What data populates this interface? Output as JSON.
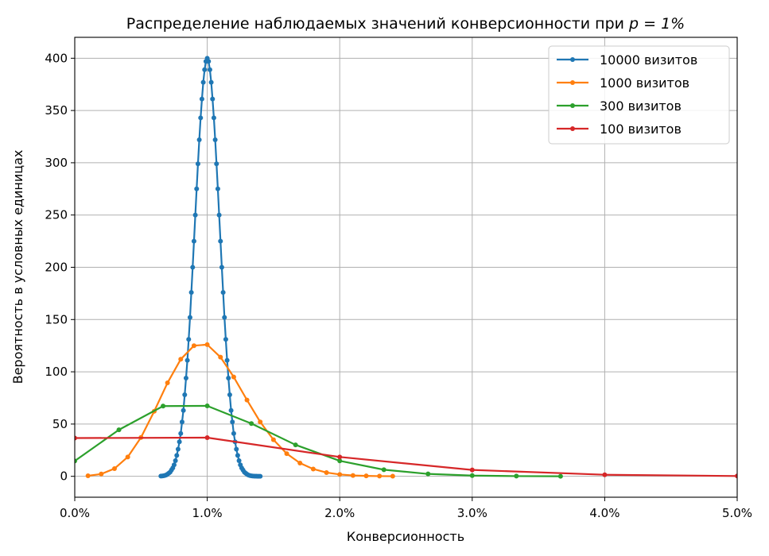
{
  "chart_data": {
    "type": "line",
    "title": "Распределение наблюдаемых значений конверсионности при ",
    "title_math": "p = 1%",
    "xlabel": "Конверсионность",
    "ylabel": "Вероятность в условных единицах",
    "xlim": [
      0.0,
      5.0
    ],
    "ylim": [
      -20,
      420
    ],
    "x_ticks": [
      0,
      1,
      2,
      3,
      4,
      5
    ],
    "x_tick_labels": [
      "0.0%",
      "1.0%",
      "2.0%",
      "3.0%",
      "4.0%",
      "5.0%"
    ],
    "y_ticks": [
      0,
      50,
      100,
      150,
      200,
      250,
      300,
      350,
      400
    ],
    "y_tick_labels": [
      "0",
      "50",
      "100",
      "150",
      "200",
      "250",
      "300",
      "350",
      "400"
    ],
    "grid": true,
    "legend_position": "top-right",
    "series": [
      {
        "name": "10000 визитов",
        "color": "#1f77b4",
        "x": [
          0.65,
          0.66,
          0.67,
          0.68,
          0.69,
          0.7,
          0.71,
          0.72,
          0.73,
          0.74,
          0.75,
          0.76,
          0.77,
          0.78,
          0.79,
          0.8,
          0.81,
          0.82,
          0.83,
          0.84,
          0.85,
          0.86,
          0.87,
          0.88,
          0.89,
          0.9,
          0.91,
          0.92,
          0.93,
          0.94,
          0.95,
          0.96,
          0.97,
          0.98,
          0.99,
          1.0,
          1.01,
          1.02,
          1.03,
          1.04,
          1.05,
          1.06,
          1.07,
          1.08,
          1.09,
          1.1,
          1.11,
          1.12,
          1.13,
          1.14,
          1.15,
          1.16,
          1.17,
          1.18,
          1.19,
          1.2,
          1.21,
          1.22,
          1.23,
          1.24,
          1.25,
          1.26,
          1.27,
          1.28,
          1.29,
          1.3,
          1.31,
          1.32,
          1.33,
          1.34,
          1.35,
          1.36,
          1.37,
          1.38,
          1.39,
          1.4
        ],
        "y": [
          0.2,
          0.3,
          0.5,
          0.8,
          1.3,
          2,
          3,
          4,
          6,
          8,
          11,
          15,
          20,
          26,
          33,
          41,
          52,
          63,
          78,
          94,
          111,
          131,
          152,
          176,
          200,
          225,
          250,
          275,
          299,
          322,
          343,
          361,
          377,
          389,
          397,
          400,
          397,
          389,
          377,
          361,
          343,
          322,
          299,
          275,
          250,
          225,
          200,
          176,
          152,
          131,
          111,
          94,
          78,
          63,
          52,
          41,
          33,
          26,
          20,
          15,
          11,
          8,
          6,
          4,
          3,
          2,
          1.3,
          0.8,
          0.5,
          0.3,
          0.2,
          0.1,
          0.1,
          0.05,
          0.03,
          0.02
        ]
      },
      {
        "name": "1000 визитов",
        "color": "#ff7f0e",
        "x": [
          0.1,
          0.2,
          0.3,
          0.4,
          0.5,
          0.6,
          0.7,
          0.8,
          0.9,
          1.0,
          1.1,
          1.2,
          1.3,
          1.4,
          1.5,
          1.6,
          1.7,
          1.8,
          1.9,
          2.0,
          2.1,
          2.2,
          2.3,
          2.4
        ],
        "y": [
          0.5,
          2.2,
          7.4,
          18.5,
          37.2,
          62.3,
          89.4,
          112,
          125,
          126,
          114,
          95,
          73,
          52,
          35,
          21.7,
          12.7,
          7,
          3.6,
          1.8,
          0.8,
          0.4,
          0.2,
          0.1
        ]
      },
      {
        "name": "300 визитов",
        "color": "#2ca02c",
        "x": [
          0.0,
          0.3333,
          0.6667,
          1.0,
          1.3333,
          1.6667,
          2.0,
          2.3333,
          2.6667,
          3.0,
          3.3333,
          3.6667
        ],
        "y": [
          14.7,
          44.5,
          67.2,
          67.4,
          50.5,
          30.1,
          14.8,
          6.3,
          2.3,
          0.7,
          0.2,
          0.05
        ]
      },
      {
        "name": "100 визитов",
        "color": "#d62728",
        "x": [
          0.0,
          1.0,
          2.0,
          3.0,
          4.0,
          5.0
        ],
        "y": [
          36.6,
          37.0,
          18.5,
          6.1,
          1.5,
          0.3
        ]
      }
    ]
  }
}
